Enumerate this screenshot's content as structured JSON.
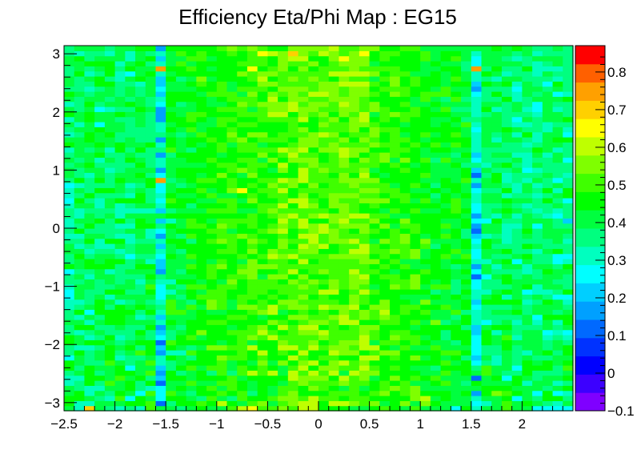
{
  "chart_data": {
    "type": "heatmap",
    "title": "Efficiency Eta/Phi Map : EG15",
    "xlabel": "",
    "ylabel": "",
    "xlim": [
      -2.5,
      2.5
    ],
    "ylim": [
      -3.14,
      3.14
    ],
    "zlim": [
      -0.1,
      0.87
    ],
    "x_ticks": [
      -2.5,
      -2,
      -1.5,
      -1,
      -0.5,
      0,
      0.5,
      1,
      1.5,
      2
    ],
    "x_tick_labels": [
      "−2.5",
      "−2",
      "−1.5",
      "−1",
      "−0.5",
      "0",
      "0.5",
      "1",
      "1.5",
      "2"
    ],
    "y_ticks": [
      -3,
      -2,
      -1,
      0,
      1,
      2,
      3
    ],
    "y_tick_labels": [
      "−3",
      "−2",
      "−1",
      "0",
      "1",
      "2",
      "3"
    ],
    "z_ticks": [
      -0.1,
      0,
      0.1,
      0.2,
      0.3,
      0.4,
      0.5,
      0.6,
      0.7,
      0.8
    ],
    "z_tick_labels": [
      "−0.1",
      "0",
      "0.1",
      "0.2",
      "0.3",
      "0.4",
      "0.5",
      "0.6",
      "0.7",
      "0.8"
    ],
    "colorbar_colors": [
      "#7f00ff",
      "#3c00ff",
      "#0000ff",
      "#0032ff",
      "#0069ff",
      "#00a0ff",
      "#00cfff",
      "#00ffff",
      "#00ffbf",
      "#00ff7f",
      "#00ff3f",
      "#00ff00",
      "#3fff00",
      "#7fff00",
      "#bfff00",
      "#ffff00",
      "#ffd000",
      "#ffa000",
      "#ff6000",
      "#ff0000"
    ],
    "grid": false,
    "legend": "colorbar-right",
    "n_eta_bins": 50,
    "n_phi_bins": 72,
    "cell_values": [
      "KIQKJIJIMKKJKLKKMOPMMNMOOLLLKKLMLKMKKKHLIKKMKKHHHH",
      "LIIKKKLLMEJLLMLOLKMNKMNOOLOONMNKLNKNLKKKHIKMKLKJIK",
      "LLKJIMHLKHLLKJMKJMLLMNNMOMMLMMLLLLNOKLKKIKKLHKJLLJ",
      "KLIKJLKHMHMKJLLMLMJLKMNLLLMMMLMNLMNLLLKLFLNMLKHLHI",
      "KJIIKKLJIHKLKLMKMLKLKMMLNMLKMKLMNMNKKKKKKLLLKKKJKL",
      "IJLJMKLJLEKKMKKMMLKLLKMNMMMNMMLMLMKKLMKJLKKKLIKKIJ",
      "IILLKMKLJGLLKLLLMKLLLLONNNLOMNKLNLMLMKKKEKLHLKJKKL",
      "JKLJKLLKMFLJKLJMJMOMOKOMOMOKONNLLLLKKMKLKMKJJLJJJK",
      "LJLKKLHKKGJLMKMMKMLMLKMOLNNMMOMLMLKKJLLLJMKKHLLLJM",
      "LKJJMKJKMIJKLLLMKLKNKNLNOLNOMNLLLLLLLMKLHJIKJLKLKL",
      "HKJKLIJJKILKJLLNMMLMLLOMLMMLLOOLMLNKLKLJGKIKJKJJKK",
      "JLJKLJKMLFIIMLLLLMLOLMLOLLONNLMNNLLLLMMLHJJKJIKLJL",
      "JIIJLKLJLGLKJKNNMMOLLOOMOMNNMOOLKMKKMKKKHJJLJKKJKL",
      "LKLLKJKLLEMLLLLKLMKLLNMMNLMNNOKMMLMLKKJLHLKLKKKJKJ",
      "LKIJLIJKJHJLMKLLLMNMOMMMMNMMMOMLNMMKLJLLHLKMIKKIJI",
      "JIJKJJJLJGJKLNLLMMMOMLMNNOMMMNMLMMLLLJLLGLIKJKKHIH",
      "JLLJJKJJLFKJLLLLKLMNLOMOOLMLMNNLLLKLLLLJGKLLJJJKJK",
      "KKIKLLKKKILKLLMMLLLLNMLMNNMOOLLMMLMKNJKLIHJKIKIKIL",
      "JIKJLLKIJGKKKLLLMMLKLLNNMMNOMNMNMLLLKKJLIJJJJKHLLL",
      "JLHLLLLJLIMMKLKKLLMNOKLMLMLNMNMOLMLMKKMJIJKKLJKKJK",
      "IJKLJLKLKJMKMKNMKNNMOMNNMONNOLNNLMMLLMKLHJJJKJKKKJ",
      "IIJLKIJKJIMKJLNMKMLMLNNMMMMLNMLNLLKNKKKLGLLLLIJLKI",
      "HKJKIKKKKHKJLMMMLMMLMLMNLMLLNMLLLKKKLKLKIKLIKJKJHH",
      "HKJJLLJJLHIKLKMMLLMMLMMMMOOLMOMLLLLLJKJLIIKLKHIIJL",
      "IKKJJKKJMHKJMMLMMLMMMMMNMLNMNMKLNMNKMMJKHJJJKLIKKJ",
      "JJKJKJKIKIILLKLKNLMMMLNMNMNMNNLLMMNLKLJLHJJLKKKKJJ",
      "JKIKKJJJLJKKKLMLMMNKNNLNLLMMNOLMMLNLLLKKEHKLJKJKKJ",
      "HJJKIJKKKFKJLLMLLNNLLMOLMNMMOMMLKLLMLLKLHKJJJIJLKK",
      "LKLLLJJLLGKKMLMNLMNNNMMMMMMMMMLMLMKKLKJKFKIKKIKKJL",
      "JKLKLLJKIGKKKLKMLKNLMMLOLMMMMNNLMKKLLKLLIIKLHKJJHI",
      "JLJKKJHJJHLKMLLLLMLMONOMMMNNNNLMLMNKLMKMHKJJKLJJHH",
      "KKIJJIJKKIKJLLLMMLNLNMMNNLLMOOMMNMNKLLMKHKKLJJIKLJ",
      "KIJIIKJKKGKLLLLLMLMLLNLONOLMMOMLMMLMJLKLILJJJLKJJJ",
      "JJLILLIJJILLJLMNMLNMLNMMOMNNOMKNMNLNKKKLHLKIJJJJKI",
      "IIKKJIIKIFKJMLLMMNMLLMLOOMNMMMLLMNLKLMLJGIJIJKJKKJ",
      "JLJJJJKKIHKLLLMMKLLMNOLMNONMLNMLMLMLLKLJEKKIJLJKKK",
      "IJLJJIILLJLKMMLNMLMLMNMONOMNNNLNKMMLLMKLFKKIIKHKJJ",
      "IKKLJLJLKGIKMLKMMMMLLOMOLLNOMMNLLNLLLKKLHHLJJKKKJG",
      "JIKJKIKKKKLLLLLLLLMLMNOMNONNOOMMKKLLLLLKFJIKIKJIHJ",
      "JIJJJIIIIGJKKKMMMKKMNMMMMMLNMLLKMLMKKLMLHJKLKJIJIJ",
      "IKKIKIJKKILLJLLLMLLMMOLONLNNMLMLLLLLLKMKHJJKJIJJKJ",
      "HLJIKLLLJHMLLKKMMKNLLMOOMLNMMNNNLMKMKLMKIKKLKKJLJH",
      "IJLJJJILJILKKLMKKLMLMMLNLMNNNMMLMMLLJLKLIKKIJJIJKL",
      "IKJLLKJKJHKLLMKLNPLMMOLMMMMMMNNMMLKKLKLKHJJLIKJLIL",
      "HIJJJKIJLHKJKLLLMLMLNMNLNLMMNMMMKLMLJLLKFKKJIKIJKJ",
      "JLJLJLKKLRJKLMMLMLLMMONOMMMNNNNLLLLKKLKMIKLIJIKJHJ",
      "KJIKJKKLJHKLLKLNLKNLLLLOMMLNLOLKLLLMKKKLEJLIJJJKJI",
      "KJKKIJKKKFKLLLLLMNMLKNLOMNMMMNKLLMLLKKKLGKJJKHIJJJ",
      "JKLJJJJLJIKKKKLMMLMMLOLMNMMNMMMLMLKLKKLJJIKLJIKJJJ",
      "KJKIKJLKJIKKLLMLLMMKNLNNNLMNLNMNKNLMJMKKHJJJKIJJKH",
      "JKKLJJKJJFJLLLLKLLLNLMOMMLMONLMNMLLKKKJLGJKKIIKIKJ",
      "IKJKILJLJJMKJLLMLMMMMONOLNNONNLLMMLKLLKKIJJJJJLKIJ",
      "LKKLKLKKLILKLKLMKMMKLLMNNMNMMMNMMLMLMKMLIKKJJIJKKJ",
      "KKLKKJKJJFLKLLMLMNLMMMLNNMMNLNMLMMLKLLLLIKIKKJIKLL",
      "IJLKLJJJJJKJKMLLNLNNLMMMNONLMMNLMKLMKLMKIKJKILIKKH",
      "JKKLKKJJJILKMKLLMLLLLLMNLMMMNLNMMLLLLLLKHKKLKJJIKI",
      "KIKHKKJKJIKLLKKMLMMLLLMLLNMMNNMLLKLLKLKMIKKJIIJIJJ",
      "IKLKKJJKJFLLMLKMMLLMMMMOLMNLNOLMLMLLKKLJJKKJHKJKKL",
      "LKLKKLKKJFLKMMLLLMMMOOLNMNLNMOKMNMMLLLKKIJKJJJIKKJ",
      "KJKHIJJLKFKKKLLMMMKMNNONNMMNNMNMLLMLKMJJILIJKIHKIJ",
      "IJLJKKLKJHLJKLKKLNMNNNOMNNMONMNLLMKKLKKKIKKJKJHKJJ",
      "KJKKJKJKJILLLLKLMMMLOLNNMMNNNMLLLLKMKJMJIJJLIJKKKL",
      "LKJKKJKJKGLLLKMMMKNLNMNMOONMNNMLNMLMMMLKHJLJIKJKHI",
      "JJIJKJKJKHKKKLLMKMMMLNNNMNNMNNLMMMLLKMKKFJJJHKKJKJ",
      "KJJLLJJIKGKKLMLMKLLNNMMMMNNOOOMLNLMLLKLLGLKLIKJHLJ",
      "KJKLJIKLKGLJKNKLLLMOLMNMNMLNMMKMNLMLLKMKIJIKKJJJIJ",
      "JLIJLIHKLIKLLLLLLNMNNMMMMMOOOONLMMKKLKLKILKIJJIKJJ",
      "JKJKLJLKKRLLMLKLLLPLMNLNLMMMNMMMMLLKKLLJRJLJJLIIIJ",
      "KKLLLIKLJIKMKLLLLMMMLNMMNLMNNNKLLLLKLKKJHKKKKJIJKJ",
      "KLJKKKIKLGKKMMKLLLMMLNOOLLNPNNLMLLLMKLMKHKKJIJKKKJ",
      "JIJJIKIKJIKMLMLLMLMPONQNMONMNPLMMLLMKLLKIKKKJKIJJJ",
      "JKKKJKKLLFLLLLLMNMNMLLNNNNOMMNNLLMMKKKKKKKLKLKJJKJ"
    ]
  }
}
